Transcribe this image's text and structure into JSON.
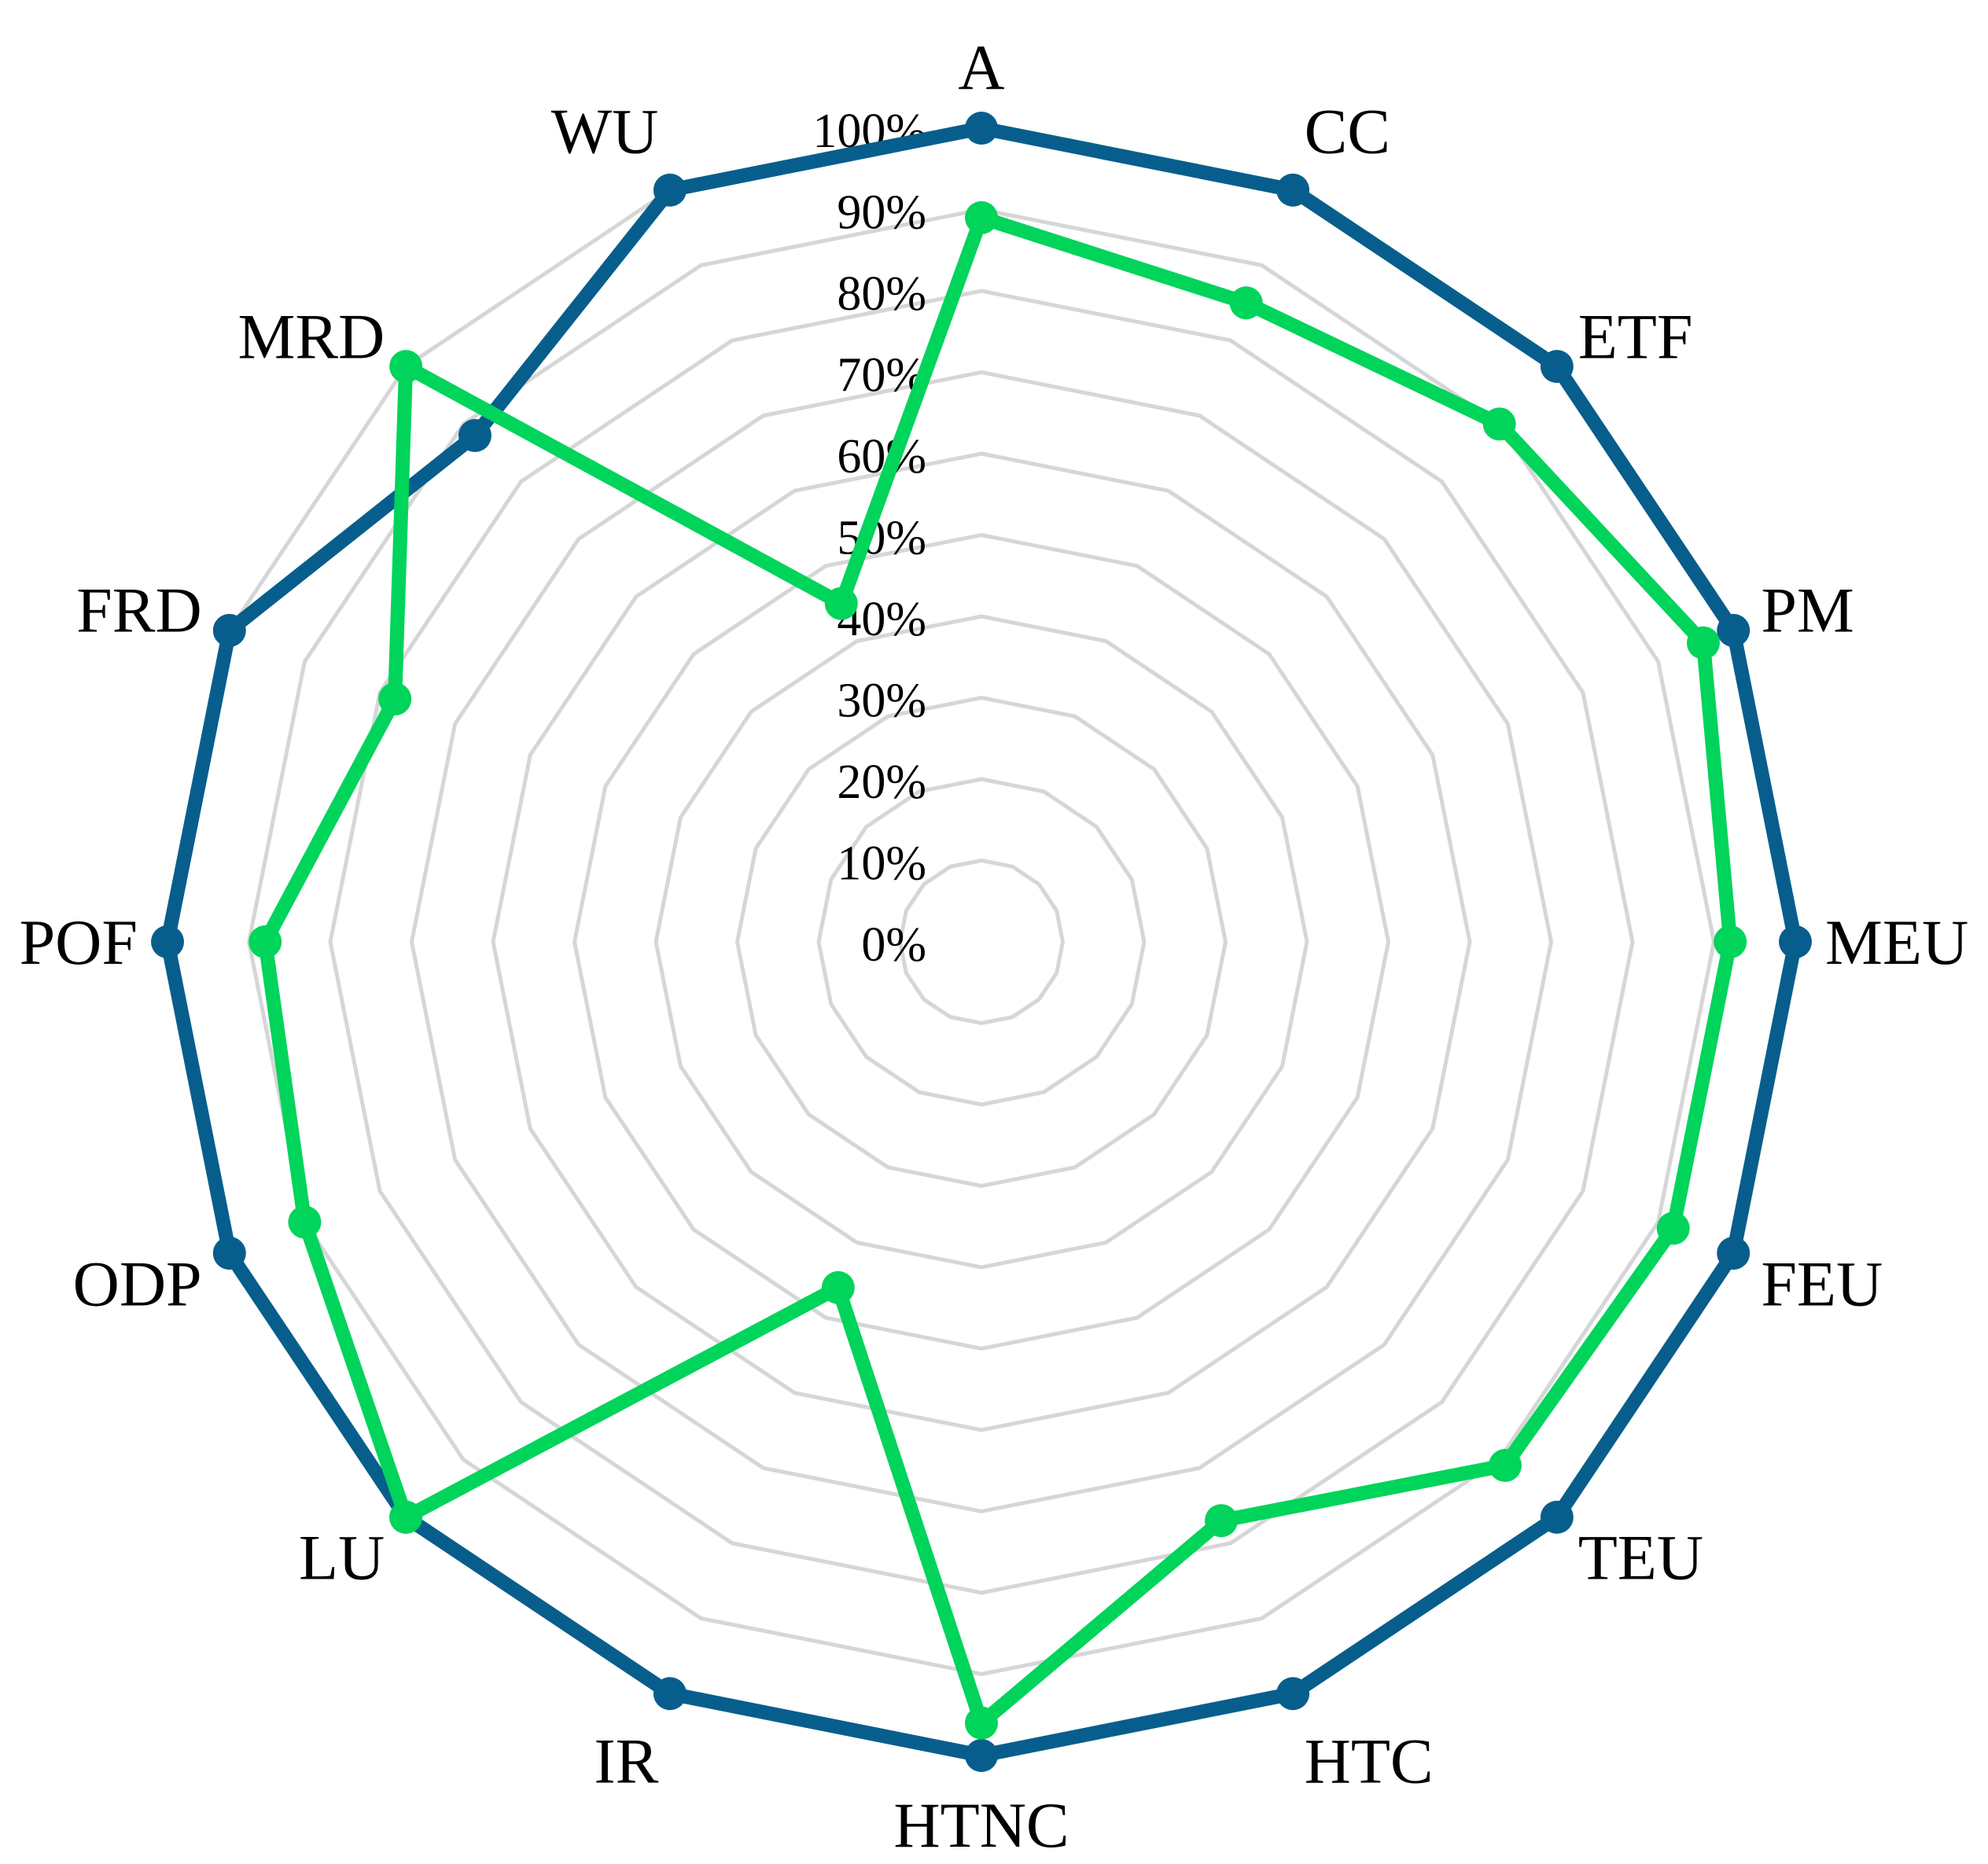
{
  "chart_data": {
    "type": "radar",
    "categories": [
      "A",
      "CC",
      "ETF",
      "PM",
      "MEU",
      "FEU",
      "TEU",
      "HTC",
      "HTNC",
      "IR",
      "LU",
      "ODP",
      "POF",
      "FRD",
      "MRD",
      "WU"
    ],
    "r_ticks": [
      "0%",
      "10%",
      "20%",
      "30%",
      "40%",
      "50%",
      "60%",
      "70%",
      "80%",
      "90%",
      "100%"
    ],
    "rlim": [
      0,
      100
    ],
    "grid": true,
    "legend": "none",
    "series": [
      {
        "color": "#075E8C",
        "values": [
          100,
          100,
          100,
          100,
          100,
          100,
          100,
          100,
          100,
          100,
          100,
          100,
          100,
          100,
          88,
          100
        ]
      },
      {
        "color": "#00D45A",
        "values": [
          89,
          85,
          90,
          96,
          92,
          92,
          91,
          77,
          96,
          46,
          100,
          90,
          88,
          78,
          100,
          45
        ]
      }
    ]
  }
}
